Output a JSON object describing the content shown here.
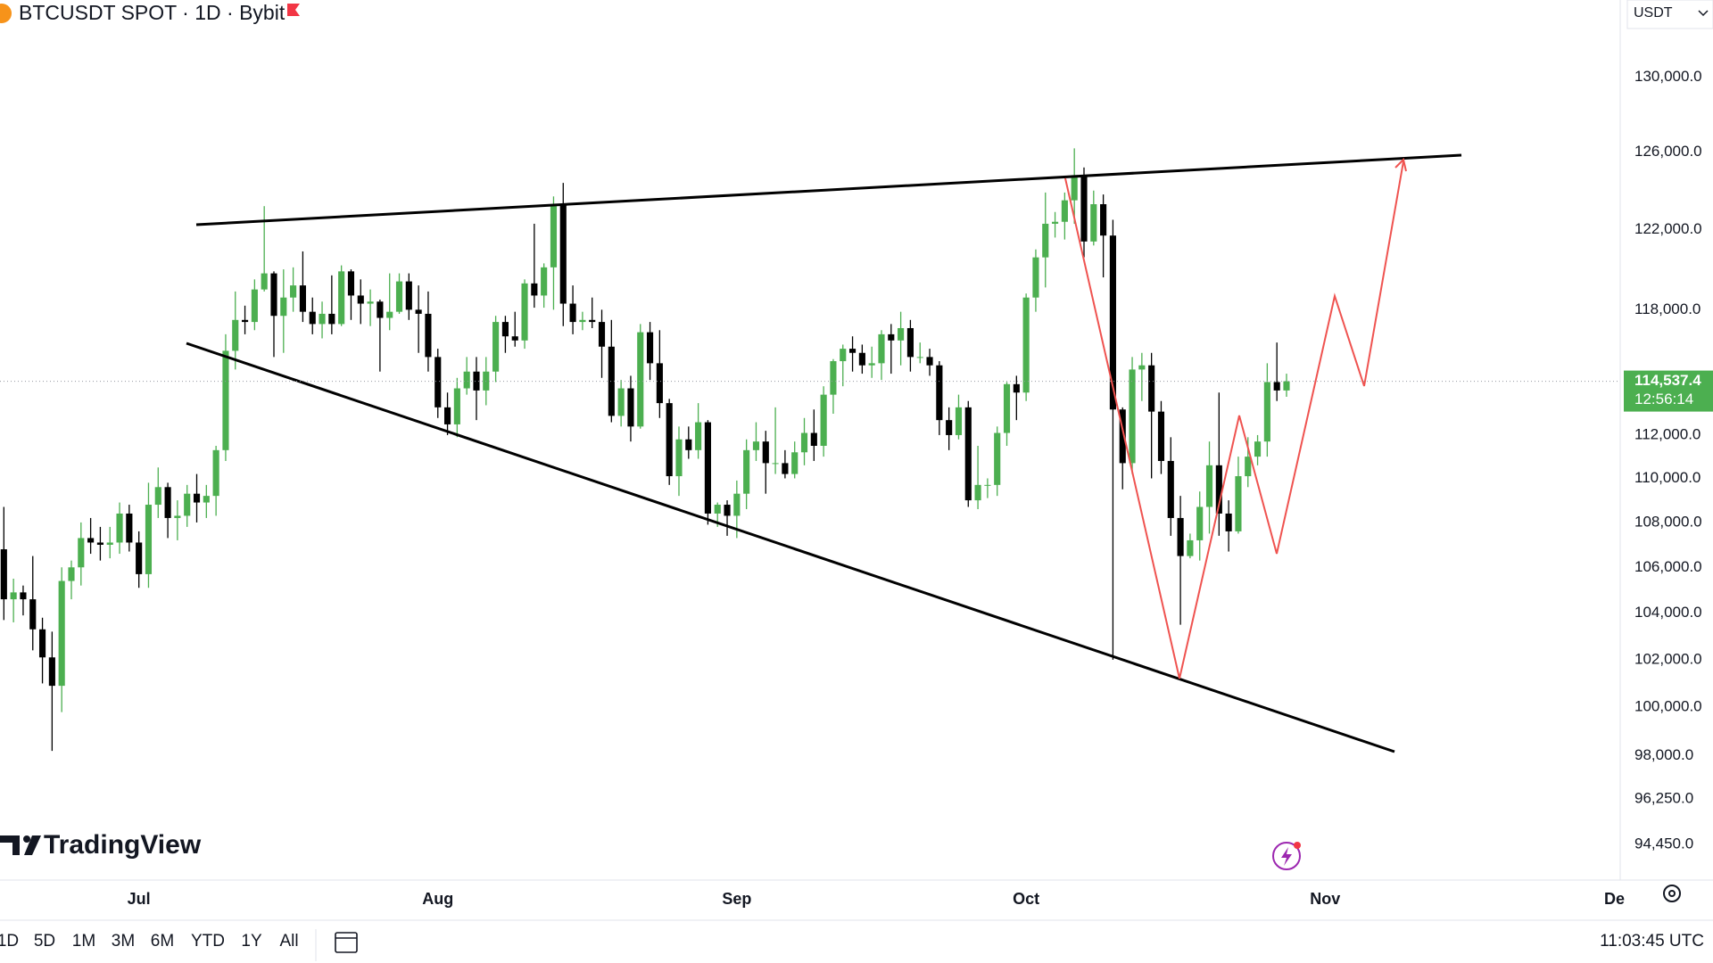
{
  "header": {
    "symbol_title": "BTCUSDT SPOT · 1D · Bybit",
    "currency": "USDT"
  },
  "brand": "TradingView",
  "toolbar": {
    "ranges": [
      "1D",
      "5D",
      "1M",
      "3M",
      "6M",
      "YTD",
      "1Y",
      "All"
    ],
    "clock": "11:03:45 UTC"
  },
  "chart_data": {
    "type": "candlestick",
    "log_scale": true,
    "grid": false,
    "up_color": "#4caf50",
    "down_color": "#000000",
    "xlim": [
      -14.4,
      153.6
    ],
    "xticks": [
      {
        "value": 0,
        "label": "Jul"
      },
      {
        "value": 31,
        "label": "Aug"
      },
      {
        "value": 62,
        "label": "Sep"
      },
      {
        "value": 92,
        "label": "Oct"
      },
      {
        "value": 123,
        "label": "Nov"
      },
      {
        "value": 153,
        "label": "De"
      }
    ],
    "ylim": [
      93060,
      134240
    ],
    "yticks": [
      {
        "value": 130000,
        "label": "130,000.0"
      },
      {
        "value": 126000,
        "label": "126,000.0"
      },
      {
        "value": 122000,
        "label": "122,000.0"
      },
      {
        "value": 118000,
        "label": "118,000.0"
      },
      {
        "value": 112000,
        "label": "112,000.0"
      },
      {
        "value": 110000,
        "label": "110,000.0"
      },
      {
        "value": 108000,
        "label": "108,000.0"
      },
      {
        "value": 106000,
        "label": "106,000.0"
      },
      {
        "value": 104000,
        "label": "104,000.0"
      },
      {
        "value": 102000,
        "label": "102,000.0"
      },
      {
        "value": 100000,
        "label": "100,000.0"
      },
      {
        "value": 98000,
        "label": "98,000.0"
      },
      {
        "value": 96250,
        "label": "96,250.0"
      },
      {
        "value": 94450,
        "label": "94,450.0"
      }
    ],
    "last_price": {
      "value": 114537.4,
      "label": "114,537.4"
    },
    "countdown": "12:56:14",
    "x": [
      -14,
      -13,
      -12,
      -11,
      -10,
      -9,
      -8,
      -7,
      -6,
      -5,
      -4,
      -3,
      -2,
      -1,
      0,
      1,
      2,
      3,
      4,
      5,
      6,
      7,
      8,
      9,
      10,
      11,
      12,
      13,
      14,
      15,
      16,
      17,
      18,
      19,
      20,
      21,
      22,
      23,
      24,
      25,
      26,
      27,
      28,
      29,
      30,
      31,
      32,
      33,
      34,
      35,
      36,
      37,
      38,
      39,
      40,
      41,
      42,
      43,
      44,
      45,
      46,
      47,
      48,
      49,
      50,
      51,
      52,
      53,
      54,
      55,
      56,
      57,
      58,
      59,
      60,
      61,
      62,
      63,
      64,
      65,
      66,
      67,
      68,
      69,
      70,
      71,
      72,
      73,
      74,
      75,
      76,
      77,
      78,
      79,
      80,
      81,
      82,
      83,
      84,
      85,
      86,
      87,
      88,
      89,
      90,
      91,
      92,
      93,
      94,
      95,
      96,
      97,
      98,
      99,
      100,
      101,
      102,
      103,
      104,
      105,
      106,
      107,
      108,
      109,
      110,
      111,
      112,
      113,
      114,
      115,
      116,
      117,
      118,
      119
    ],
    "open": [
      106800,
      104600,
      104900,
      104600,
      103300,
      102100,
      100900,
      105400,
      106000,
      107300,
      107100,
      107000,
      107100,
      108400,
      107100,
      105700,
      108800,
      109600,
      108200,
      108300,
      109300,
      108900,
      109200,
      111300,
      116000,
      117500,
      117400,
      119000,
      119800,
      117700,
      118600,
      119200,
      117900,
      117300,
      117800,
      117300,
      119900,
      118700,
      118300,
      118400,
      117600,
      117900,
      119400,
      118000,
      117800,
      115700,
      113300,
      112500,
      114200,
      115000,
      114100,
      115000,
      117400,
      116700,
      116500,
      119300,
      118700,
      120100,
      123300,
      118300,
      117400,
      117500,
      117400,
      116200,
      112900,
      114200,
      112400,
      116900,
      115400,
      113500,
      110100,
      111800,
      111300,
      112600,
      108400,
      108800,
      108300,
      109300,
      111300,
      111700,
      110700,
      110700,
      110200,
      111200,
      112100,
      111500,
      113900,
      115500,
      116100,
      115900,
      115300,
      115400,
      116800,
      116500,
      117100,
      115700,
      115700,
      115300,
      112700,
      112000,
      113300,
      109000,
      109700,
      109700,
      112100,
      114400,
      114000,
      118600,
      120600,
      122300,
      122400,
      123500,
      124800,
      121400,
      123300,
      121700,
      113200,
      110700,
      115100,
      115300,
      113100,
      110800,
      108200,
      106500,
      107200,
      108700,
      110600,
      108400,
      107600,
      110100,
      111000,
      111700,
      114500,
      114100
    ],
    "high": [
      108700,
      105500,
      105200,
      106500,
      103800,
      103200,
      106000,
      106300,
      108000,
      108200,
      107800,
      107800,
      108900,
      108800,
      107600,
      109800,
      110500,
      109800,
      109000,
      109700,
      110200,
      109700,
      111500,
      116800,
      118900,
      118200,
      119500,
      123200,
      119900,
      120000,
      120100,
      120900,
      118600,
      118400,
      119700,
      120200,
      120000,
      119500,
      119000,
      118500,
      119800,
      119800,
      119800,
      119200,
      118900,
      116100,
      114000,
      114700,
      115700,
      115700,
      115700,
      117700,
      117700,
      117900,
      119500,
      122300,
      120300,
      123700,
      124400,
      119200,
      117900,
      118600,
      118000,
      117500,
      114600,
      114800,
      117300,
      117400,
      117000,
      113700,
      112400,
      112400,
      113500,
      112700,
      108900,
      109000,
      109900,
      111800,
      112600,
      112200,
      113300,
      111300,
      111700,
      112800,
      113200,
      114300,
      115600,
      116300,
      116700,
      116300,
      116200,
      117000,
      117300,
      117900,
      117500,
      116400,
      116100,
      115500,
      113300,
      113900,
      113600,
      111500,
      110000,
      112400,
      114500,
      114800,
      118800,
      121000,
      123900,
      122900,
      123900,
      126200,
      125200,
      124000,
      123800,
      122500,
      113300,
      115700,
      115900,
      115900,
      113600,
      111900,
      109200,
      107500,
      109400,
      111700,
      114000,
      109000,
      111000,
      111900,
      112000,
      115400,
      116400,
      114900
    ],
    "low": [
      103700,
      103600,
      103900,
      102400,
      101000,
      98200,
      99800,
      104600,
      105200,
      106600,
      106300,
      106400,
      106600,
      106700,
      105100,
      105100,
      108200,
      107300,
      107200,
      107800,
      108000,
      108200,
      108300,
      110800,
      115100,
      116800,
      117000,
      118900,
      115700,
      115900,
      117900,
      117400,
      116800,
      116600,
      116800,
      117200,
      117500,
      117300,
      117200,
      115000,
      117000,
      117800,
      117500,
      115900,
      115000,
      112800,
      112000,
      111900,
      113900,
      112700,
      113400,
      114500,
      115900,
      116200,
      116100,
      118100,
      118100,
      118000,
      117200,
      116800,
      117000,
      117100,
      114700,
      112600,
      112400,
      111700,
      112300,
      114600,
      112800,
      109700,
      109200,
      110900,
      110900,
      107900,
      107800,
      107400,
      107300,
      108600,
      110800,
      109300,
      110200,
      110000,
      110000,
      110600,
      110800,
      111000,
      113000,
      114300,
      115000,
      114900,
      114700,
      114600,
      114900,
      115300,
      115000,
      115400,
      114800,
      112000,
      111300,
      111800,
      108700,
      108600,
      109100,
      109200,
      111500,
      112700,
      113600,
      117900,
      119100,
      121600,
      121500,
      122300,
      120600,
      121200,
      119600,
      102000,
      109500,
      110200,
      113600,
      110000,
      110200,
      107400,
      103500,
      106400,
      106300,
      107500,
      107400,
      106700,
      107500,
      109600,
      110600,
      111000,
      113600,
      113800
    ],
    "close": [
      104600,
      104900,
      104600,
      103300,
      102100,
      100900,
      105400,
      106000,
      107300,
      107100,
      107000,
      107100,
      108400,
      107100,
      105700,
      108800,
      109600,
      108200,
      108300,
      109300,
      108900,
      109200,
      111300,
      116000,
      117500,
      117400,
      119000,
      119800,
      117700,
      118600,
      119200,
      117900,
      117300,
      117800,
      117300,
      119900,
      118700,
      118300,
      118400,
      117600,
      117900,
      119400,
      118000,
      117800,
      115700,
      113300,
      112500,
      114200,
      115000,
      114100,
      115000,
      117400,
      116700,
      116500,
      119300,
      118700,
      120100,
      123300,
      118300,
      117400,
      117500,
      117400,
      116200,
      112900,
      114200,
      112400,
      116900,
      115400,
      113500,
      110100,
      111800,
      111300,
      112600,
      108400,
      108800,
      108300,
      109300,
      111300,
      111700,
      110700,
      110700,
      110200,
      111200,
      112100,
      111500,
      113900,
      115500,
      116100,
      115900,
      115300,
      115400,
      116800,
      116500,
      117100,
      115700,
      115700,
      115300,
      112700,
      112000,
      113300,
      109000,
      109700,
      109700,
      112100,
      114400,
      114000,
      118600,
      120600,
      122300,
      122400,
      123500,
      124800,
      121400,
      123300,
      121700,
      113200,
      110700,
      115100,
      115300,
      113100,
      110800,
      108200,
      106500,
      107200,
      108700,
      110600,
      108400,
      107600,
      110100,
      111000,
      111700,
      114500,
      114100,
      114537.4
    ]
  }
}
